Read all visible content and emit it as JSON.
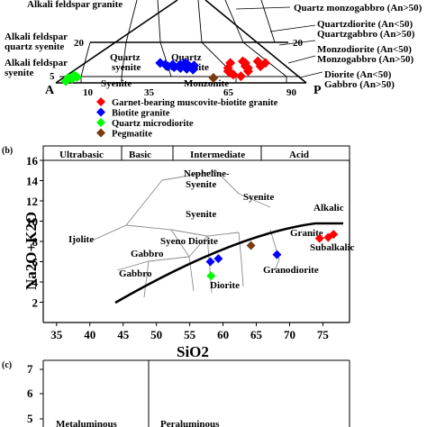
{
  "colors": {
    "garnet": "#ff0000",
    "biotite": "#0000ff",
    "microdiorite": "#00ff00",
    "pegmatite": "#7a3b10"
  },
  "qap": {
    "fields_left": [
      "Alkali feldspar granite",
      "Alkali feldspar",
      "quartz syenite",
      "Alkali feldspar",
      "syenite"
    ],
    "fields_inner": [
      "Quartz",
      "syenite",
      "Quartz",
      "monzonite",
      "Syenite",
      "Monzonite"
    ],
    "fields_right": [
      "Quartz monzogabbro (An>50)",
      "Quartzdiorite (An<50)",
      "Quartzgabbro (An>50)",
      "Monzodiorite (An<50)",
      "Monzogabbro (An>50)",
      "Diorite (An<50)",
      "Gabbro (An>50)"
    ],
    "corners": {
      "a": "A",
      "p": "P"
    },
    "edge_ticks": [
      "20",
      "5",
      "10",
      "35",
      "65",
      "90"
    ],
    "legend": [
      {
        "key": "garnet",
        "label": "Garnet-bearing muscovite-biotite granite",
        "marker": "diamond"
      },
      {
        "key": "biotite",
        "label": "Biotite granite",
        "marker": "diamond"
      },
      {
        "key": "microdiorite",
        "label": "Quartz microdiorite",
        "marker": "diamond"
      },
      {
        "key": "pegmatite",
        "label": "Pegmatite",
        "marker": "diamond"
      }
    ]
  },
  "panel_b": {
    "letter": "(b)",
    "zones": [
      "Ultrabasic",
      "Basic",
      "Intermediate",
      "Acid"
    ],
    "fields": [
      "Nepheline-",
      "Syenite",
      "Syenite",
      "Syenite",
      "Alkalic",
      "Ijolite",
      "Granite",
      "Subalkalic",
      "Syeno Diorite",
      "Gabbro",
      "Gabbro",
      "Granodiorite",
      "Diorite"
    ]
  },
  "panel_c": {
    "letter": "(c)",
    "fields": [
      "Metaluminous",
      "Peraluminous"
    ],
    "y_ticks": [
      "7",
      "6",
      "5"
    ]
  },
  "chart_data": [
    {
      "type": "scatter",
      "subtype": "QAP ternary (Streckeisen)",
      "series": [
        {
          "name": "Garnet-bearing muscovite-biotite granite",
          "color_key": "garnet",
          "points": [
            [
              70,
              8
            ],
            [
              66,
              10
            ],
            [
              64,
              12
            ],
            [
              62,
              14
            ],
            [
              70,
              14
            ],
            [
              68,
              18
            ],
            [
              60,
              18
            ],
            [
              66,
              20
            ],
            [
              72,
              20
            ],
            [
              64,
              24
            ],
            [
              58,
              24
            ],
            [
              68,
              26
            ],
            [
              62,
              26
            ],
            [
              72,
              24
            ]
          ]
        },
        {
          "name": "Biotite granite",
          "color_key": "biotite",
          "points": [
            [
              47,
              16
            ],
            [
              44,
              17
            ],
            [
              41,
              18
            ],
            [
              38,
              19
            ],
            [
              35,
              20
            ],
            [
              45,
              21
            ],
            [
              42,
              22
            ],
            [
              39,
              22
            ],
            [
              36,
              22
            ],
            [
              33,
              22
            ],
            [
              40,
              24
            ],
            [
              30,
              24
            ]
          ]
        },
        {
          "name": "Quartz microdiorite",
          "color_key": "microdiorite",
          "points": [
            [
              3,
              2
            ],
            [
              4,
              5
            ],
            [
              2,
              6
            ],
            [
              5,
              7
            ],
            [
              3,
              9
            ]
          ]
        },
        {
          "name": "Pegmatite",
          "color_key": "pegmatite",
          "points": [
            [
              60,
              6
            ]
          ]
        }
      ]
    },
    {
      "type": "scatter",
      "subtype": "TAS classification",
      "xlabel": "SiO2",
      "ylabel": "Na2O+K2O",
      "xlim": [
        33,
        79
      ],
      "ylim": [
        0,
        16
      ],
      "x_ticks": [
        35,
        40,
        45,
        50,
        55,
        60,
        65,
        70,
        75
      ],
      "y_ticks": [
        2,
        4,
        6,
        8,
        10,
        12,
        14,
        16
      ],
      "series": [
        {
          "name": "Garnet-bearing muscovite-biotite granite",
          "color_key": "garnet",
          "points": [
            [
              74.5,
              8.3
            ],
            [
              75.8,
              8.4
            ],
            [
              76.6,
              8.7
            ]
          ]
        },
        {
          "name": "Biotite granite",
          "color_key": "biotite",
          "points": [
            [
              58.1,
              6.0
            ],
            [
              59.3,
              6.3
            ],
            [
              68.1,
              6.7
            ]
          ]
        },
        {
          "name": "Quartz microdiorite",
          "color_key": "microdiorite",
          "points": [
            [
              58.2,
              4.6
            ]
          ]
        },
        {
          "name": "Pegmatite",
          "color_key": "pegmatite",
          "points": [
            [
              64.2,
              7.6
            ]
          ]
        }
      ]
    }
  ]
}
